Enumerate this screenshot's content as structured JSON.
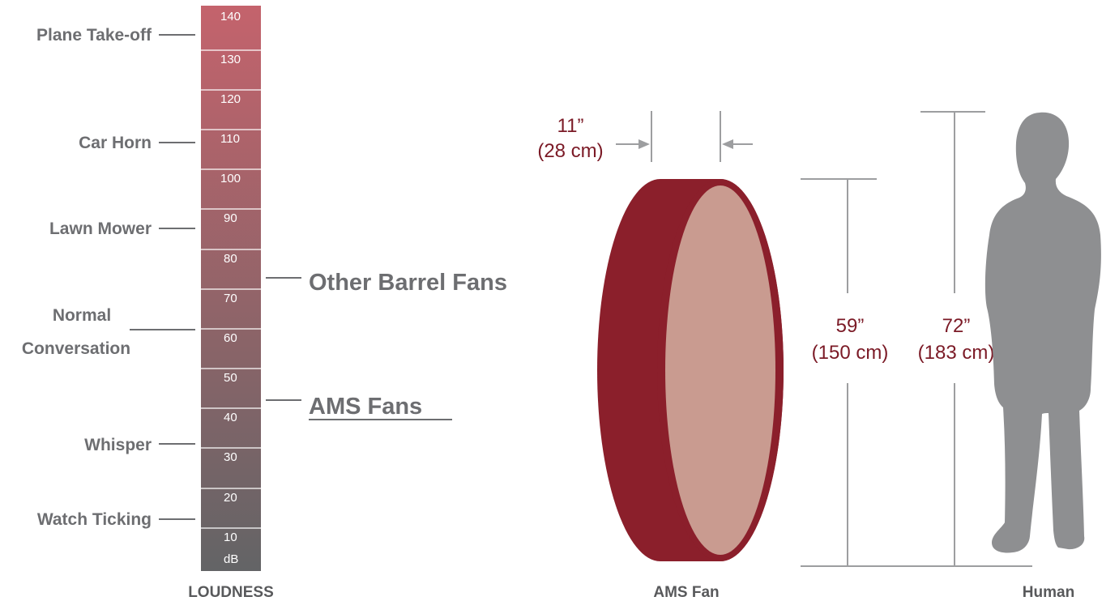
{
  "loudness": {
    "title": "LOUDNESS",
    "unit": "dB",
    "ticks": [
      "140",
      "130",
      "120",
      "110",
      "100",
      "90",
      "80",
      "70",
      "60",
      "50",
      "40",
      "30",
      "20",
      "10"
    ],
    "examples": {
      "plane": "Plane Take-off",
      "car": "Car Horn",
      "mower": "Lawn Mower",
      "conv1": "Normal",
      "conv2": "Conversation",
      "whisper": "Whisper",
      "watch": "Watch Ticking"
    },
    "other_fans": "Other Barrel Fans",
    "ams_fans": "AMS Fans",
    "colors": {
      "top": "#c4636c",
      "bottom": "#636466"
    }
  },
  "size": {
    "depth_in": "11”",
    "depth_cm": "(28 cm)",
    "fan_h_in": "59”",
    "fan_h_cm": "(150 cm)",
    "human_h_in": "72”",
    "human_h_cm": "(183 cm)",
    "fan_caption": "AMS Fan",
    "human_caption": "Human",
    "colors": {
      "fan_rim": "#8b1f2b",
      "fan_face": "#c99b90",
      "human": "#8e8f91",
      "line": "#9d9ea0"
    }
  }
}
